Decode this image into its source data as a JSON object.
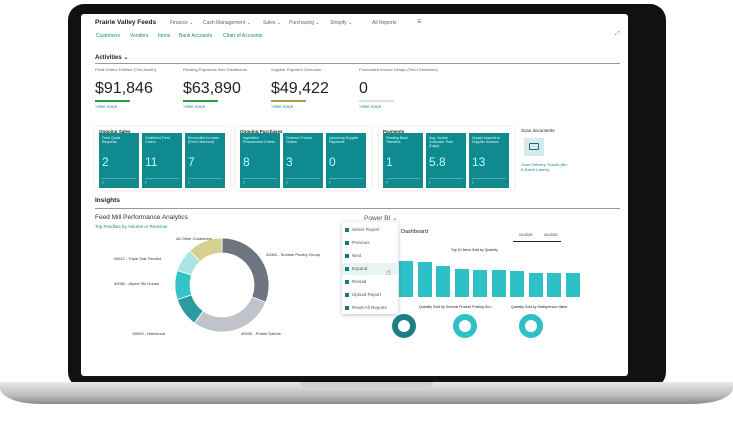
{
  "header": {
    "company": "Prairie Valley Feeds",
    "menus": [
      "Finance",
      "Cash Management",
      "Sales",
      "Purchasing",
      "Shopify"
    ],
    "all_reports": "All Reports"
  },
  "links": [
    "Customers",
    "Vendors",
    "Items",
    "Bank Accounts",
    "Chart of Accounts"
  ],
  "activities": {
    "title": "Activities",
    "kpis": [
      {
        "label": "Feed Orders Fulfilled (This Month)",
        "value": "$91,846",
        "see_more": "See more",
        "color": "#2e9e3e"
      },
      {
        "label": "Pending Payments from Distributors",
        "value": "$63,890",
        "see_more": "See more",
        "color": "#2e9e3e"
      },
      {
        "label": "Supplier Payment Overdues",
        "value": "$49,422",
        "see_more": "See more",
        "color": "#a8a03a"
      },
      {
        "label": "Forecasted Invoice Delays (Feed Deliveries)",
        "value": "0",
        "see_more": "See more",
        "color": "#dddddd"
      }
    ]
  },
  "groups": [
    {
      "title": "Ongoing Sales",
      "tiles": [
        {
          "label": "Feed Quote Requests",
          "value": "2"
        },
        {
          "label": "Confirmed Feed Orders",
          "value": "11"
        },
        {
          "label": "Reconciled Invoices (Feed Delivered)",
          "value": "7"
        }
      ]
    },
    {
      "title": "Ongoing Purchases",
      "tiles": [
        {
          "label": "Ingredient Procurement Orders",
          "value": "8"
        },
        {
          "label": "Contract Product Orders",
          "value": "3"
        },
        {
          "label": "Upcoming Supplier Payments",
          "value": "0"
        }
      ]
    },
    {
      "title": "Payments",
      "tiles": [
        {
          "label": "Pending Bank Transfers",
          "value": "1"
        },
        {
          "label": "Avg. Invoice Collection Time (Days)",
          "value": "5.8"
        },
        {
          "label": "Unpaid Ingredient Supplier Invoices",
          "value": "13"
        }
      ]
    }
  ],
  "scan": {
    "title": "Scan documents",
    "link": "Scan Delivery Tickets (Bin & Batch Labels)"
  },
  "insights": {
    "title": "Insights",
    "chart_title": "Feed Mill Performance Analytics",
    "chart_subtitle": "Top Feedlots by Volume or Revenue"
  },
  "chart_data": {
    "type": "pie",
    "donut": true,
    "slices": [
      {
        "name": "40063 - Sunrise Poultry Group",
        "value": 31,
        "color": "#6f7580"
      },
      {
        "name": "40035 - Prairie Dairies",
        "value": 29,
        "color": "#c0c3cb"
      },
      {
        "name": "50000 - Relecloud",
        "value": 10,
        "color": "#2a9c9f"
      },
      {
        "name": "40060 - Alpine Ski House",
        "value": 10,
        "color": "#33c3c9"
      },
      {
        "name": "40012 - Triple Oak Feedlot",
        "value": 8,
        "color": "#a9e4e6"
      },
      {
        "name": "All Other Customers",
        "value": 12,
        "color": "#d6d08e"
      }
    ]
  },
  "powerbi": {
    "label": "Power BI",
    "menu": [
      "Select Report",
      "Previous",
      "Next",
      "Expand",
      "Reload",
      "Upload Report",
      "Reset All Reports"
    ],
    "dashboard_title": "Dashboard",
    "bar_title": "Top 10 Items Sold by Quantity",
    "donut_titles": [
      "Quantity Sold by General Product Posting Gro...",
      "Quantity Sold by Salesperson Name"
    ],
    "dates": [
      "1/1/2022",
      "4/1/2022"
    ]
  }
}
